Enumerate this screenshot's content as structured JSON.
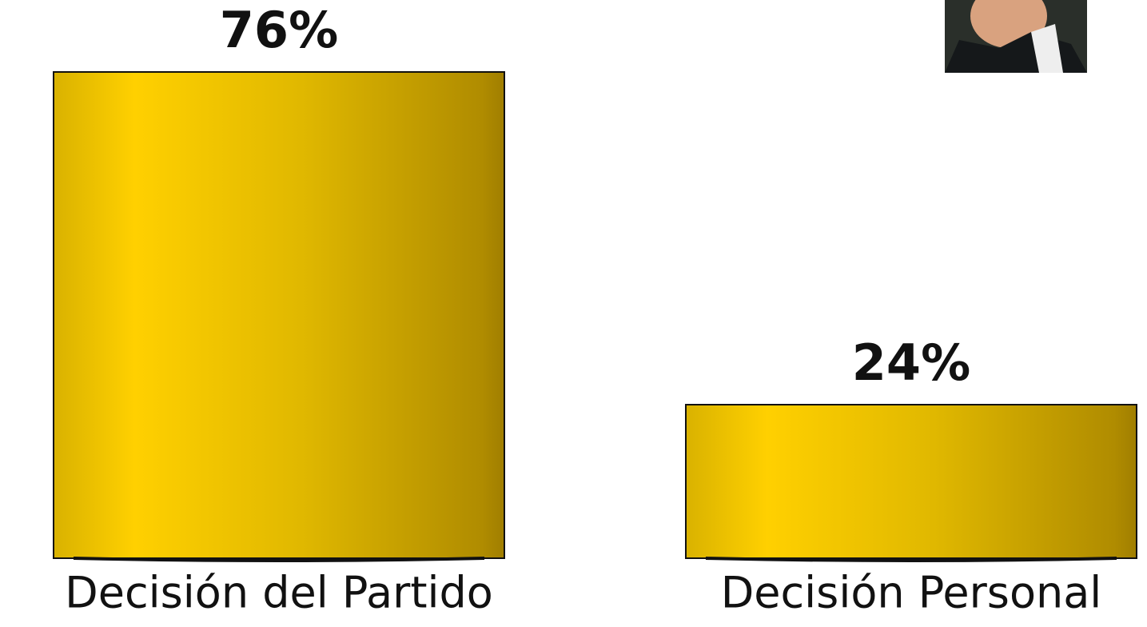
{
  "chart_data": {
    "type": "bar",
    "categories": [
      "Decisión del Partido",
      "Decisión Personal"
    ],
    "values": [
      76,
      24
    ],
    "value_labels": [
      "76%",
      "24%"
    ],
    "color": "#e8c000"
  }
}
